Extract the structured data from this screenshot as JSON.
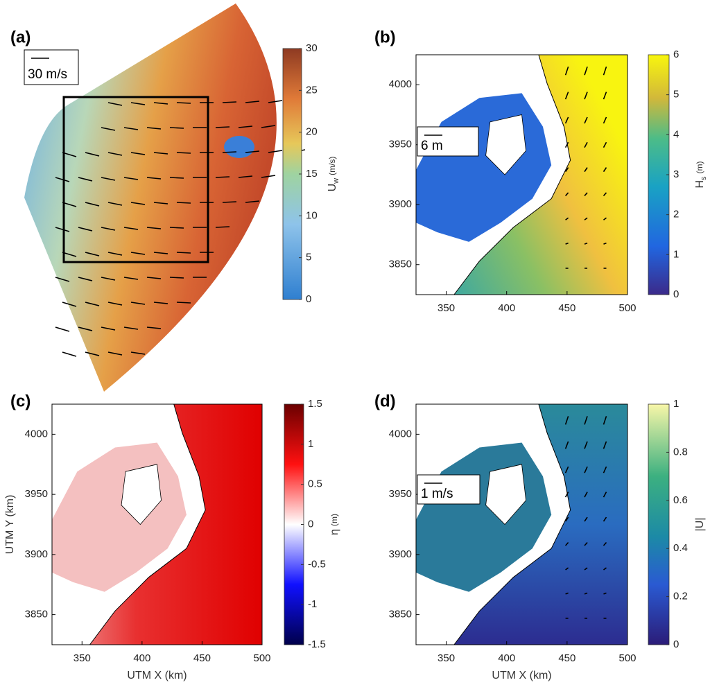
{
  "chart_data": [
    {
      "type": "map",
      "label": "(a)",
      "scale_label": "30 m/s",
      "colorbar": {
        "label": {
          "base": "U",
          "sub": "w",
          "unit": "(m/s)"
        },
        "lim": [
          0,
          30
        ],
        "ticks": [
          0,
          5,
          10,
          15,
          20,
          25,
          30
        ]
      }
    },
    {
      "type": "map",
      "label": "(b)",
      "scale_label": "6 m",
      "xlim": [
        325,
        500
      ],
      "xticks": [
        350,
        400,
        450,
        500
      ],
      "ylim": [
        3825,
        4025
      ],
      "yticks": [
        3850,
        3900,
        3950,
        4000
      ],
      "colorbar": {
        "label": {
          "base": "H",
          "sub": "s",
          "unit": "(m)"
        },
        "lim": [
          0,
          6
        ],
        "ticks": [
          0,
          1,
          2,
          3,
          4,
          5,
          6
        ]
      }
    },
    {
      "type": "map",
      "label": "(c)",
      "xlabel": "UTM X (km)",
      "ylabel": "UTM Y (km)",
      "xlim": [
        325,
        500
      ],
      "xticks": [
        350,
        400,
        450,
        500
      ],
      "ylim": [
        3825,
        4025
      ],
      "yticks": [
        3850,
        3900,
        3950,
        4000
      ],
      "colorbar": {
        "label": {
          "base": "η",
          "unit": "(m)"
        },
        "lim": [
          -1.5,
          1.5
        ],
        "ticks": [
          -1.5,
          -1,
          -0.5,
          0,
          0.5,
          1,
          1.5
        ]
      }
    },
    {
      "type": "map",
      "label": "(d)",
      "scale_label": "1 m/s",
      "xlabel": "UTM X (km)",
      "xlim": [
        325,
        500
      ],
      "xticks": [
        350,
        400,
        450,
        500
      ],
      "ylim": [
        3825,
        4025
      ],
      "yticks": [
        3850,
        3900,
        3950,
        4000
      ],
      "colorbar": {
        "label": {
          "base": "|U|"
        },
        "lim": [
          0,
          1
        ],
        "ticks": [
          0,
          0.2,
          0.4,
          0.6,
          0.8,
          1
        ]
      }
    }
  ]
}
